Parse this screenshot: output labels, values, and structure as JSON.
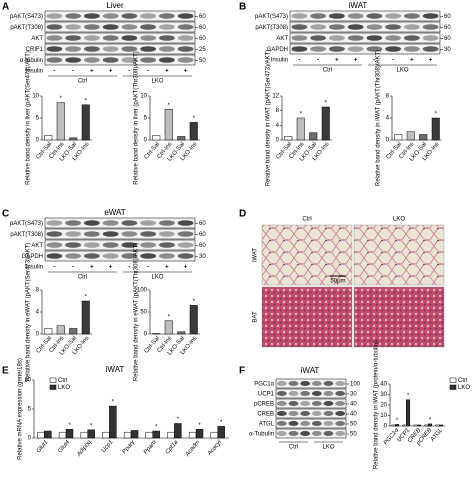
{
  "panels": [
    {
      "letter": "A",
      "title": "Liver",
      "blot": {
        "rows": [
          {
            "label": "pAKT(S473)",
            "mw": 60
          },
          {
            "label": "pAKT(T308)",
            "mw": 60
          },
          {
            "label": "AKT",
            "mw": 60
          },
          {
            "label": "CRIF1",
            "mw": 25
          },
          {
            "label": "α-tubulin",
            "mw": 50
          }
        ],
        "insulin_label": "Insulin",
        "insulin": [
          "-",
          "-",
          "+",
          "+",
          "-",
          "-",
          "+",
          "+"
        ],
        "groups": [
          "Ctrl",
          "LKO"
        ]
      },
      "charts": [
        {
          "ylabel": "Relative band density in liver (pAKT(Ser473)/AKT)",
          "categories": [
            "Ctrl-Sal",
            "Ctrl-Ins",
            "LKO-Sal",
            "LKO-Ins"
          ],
          "values": [
            1,
            8.5,
            0.5,
            8
          ],
          "colors": [
            "#ffffff",
            "#bdbdbd",
            "#6e6e6e",
            "#3a3a3a"
          ],
          "marks": [
            null,
            "*",
            null,
            "*"
          ],
          "ylim": [
            0,
            10
          ],
          "yticks": [
            0,
            5,
            10
          ]
        },
        {
          "ylabel": "Relative band density in liver (pAKT(Thr308)/AKT)",
          "categories": [
            "Ctrl-Sal",
            "Ctrl-Ins",
            "LKO-Sal",
            "LKO-Ins"
          ],
          "values": [
            1,
            7,
            0.8,
            4
          ],
          "colors": [
            "#ffffff",
            "#bdbdbd",
            "#6e6e6e",
            "#3a3a3a"
          ],
          "marks": [
            null,
            "*",
            null,
            "*"
          ],
          "ylim": [
            0,
            10
          ],
          "yticks": [
            0,
            5,
            10
          ]
        }
      ]
    },
    {
      "letter": "B",
      "title": "iWAT",
      "blot": {
        "rows": [
          {
            "label": "pAKT(S473)",
            "mw": 60
          },
          {
            "label": "pAKT(T308)",
            "mw": 60
          },
          {
            "label": "AKT",
            "mw": 60
          },
          {
            "label": "GAPDH",
            "mw": 30
          }
        ],
        "insulin_label": "Insulin",
        "insulin": [
          "-",
          "-",
          "+",
          "+",
          "-",
          "-",
          "+",
          "+"
        ],
        "groups": [
          "Ctrl",
          "LKO"
        ]
      },
      "charts": [
        {
          "ylabel": "Relative band density in iWAT (pAKT(Ser473)/AKT)",
          "categories": [
            "Ctrl-Sal",
            "Ctrl-Ins",
            "LKO-Sal",
            "LKO-Ins"
          ],
          "values": [
            1,
            6,
            2,
            9
          ],
          "colors": [
            "#ffffff",
            "#bdbdbd",
            "#6e6e6e",
            "#3a3a3a"
          ],
          "marks": [
            null,
            "*",
            null,
            "*"
          ],
          "ylim": [
            0,
            12
          ],
          "yticks": [
            0,
            4,
            8,
            12
          ]
        },
        {
          "ylabel": "Relative band density in iWAT (pAKT(Thr308)/AKT)",
          "categories": [
            "Ctrl-Sal",
            "Ctrl-Ins",
            "LKO-Sal",
            "LKO-Ins"
          ],
          "values": [
            1,
            1.5,
            1,
            4
          ],
          "colors": [
            "#ffffff",
            "#bdbdbd",
            "#6e6e6e",
            "#3a3a3a"
          ],
          "marks": [
            null,
            null,
            null,
            "*"
          ],
          "ylim": [
            0,
            8
          ],
          "yticks": [
            0,
            4,
            8
          ]
        }
      ]
    },
    {
      "letter": "C",
      "title": "eWAT",
      "blot": {
        "rows": [
          {
            "label": "pAKT(S473)",
            "mw": 60
          },
          {
            "label": "pAKT(T308)",
            "mw": 60
          },
          {
            "label": "AKT",
            "mw": 60
          },
          {
            "label": "GAPDH",
            "mw": 30
          }
        ],
        "insulin_label": "Insulin",
        "insulin": [
          "-",
          "-",
          "+",
          "+",
          "-",
          "-",
          "+",
          "+"
        ],
        "groups": [
          "Ctrl",
          "LKO"
        ]
      },
      "charts": [
        {
          "ylabel": "Relative band density in eWAT (pAKT(Ser473)/AKT)",
          "categories": [
            "Ctrl-Sal",
            "Ctrl-Ins",
            "LKO-Sal",
            "LKO-Ins"
          ],
          "values": [
            1,
            1.5,
            1,
            6
          ],
          "colors": [
            "#ffffff",
            "#bdbdbd",
            "#6e6e6e",
            "#3a3a3a"
          ],
          "marks": [
            null,
            null,
            null,
            "*"
          ],
          "ylim": [
            0,
            8
          ],
          "yticks": [
            0,
            4,
            8
          ]
        },
        {
          "ylabel": "Relative band density in eWAT (pAKT(Thr308)/AKT)",
          "categories": [
            "Ctrl-Sal",
            "Ctrl-Ins",
            "LKO-Sal",
            "LKO-Ins"
          ],
          "values": [
            1,
            30,
            5,
            65
          ],
          "colors": [
            "#ffffff",
            "#bdbdbd",
            "#6e6e6e",
            "#3a3a3a"
          ],
          "marks": [
            null,
            "*",
            null,
            "*"
          ],
          "ylim": [
            0,
            100
          ],
          "yticks": [
            0,
            50,
            100
          ]
        }
      ]
    },
    {
      "letter": "D",
      "columns": [
        "Ctrl",
        "LKO"
      ],
      "rows": [
        "iWAT",
        "BAT"
      ],
      "scale": "50μm"
    },
    {
      "letter": "E",
      "title": "iWAT",
      "charts": [
        {
          "ylabel": "Relative mRNA expression (gene/18s)",
          "categories": [
            "Glut1",
            "Glut4",
            "Adipoq",
            "Ucp1",
            "Pparγ",
            "Pparα",
            "Cpt1a",
            "Acadm",
            "Acacyl"
          ],
          "series": [
            {
              "name": "Ctrl",
              "color": "#ffffff",
              "values": [
                1,
                1,
                1,
                1,
                1,
                1,
                1,
                1,
                1
              ],
              "marks": [
                null,
                null,
                null,
                null,
                null,
                null,
                null,
                null,
                null
              ]
            },
            {
              "name": "LKO",
              "color": "#333333",
              "values": [
                1.2,
                1.5,
                1.4,
                5.5,
                1.3,
                1.2,
                2.5,
                1.5,
                2
              ],
              "marks": [
                null,
                "*",
                "*",
                "*",
                null,
                "*",
                "*",
                "*",
                "*"
              ]
            }
          ],
          "ylim": [
            0,
            10
          ],
          "yticks": [
            0,
            5,
            10
          ]
        }
      ]
    },
    {
      "letter": "F",
      "title": "iWAT",
      "blot": {
        "rows": [
          {
            "label": "PGC1α",
            "mw": 100
          },
          {
            "label": "UCP1",
            "mw": 30
          },
          {
            "label": "pCREB",
            "mw": 40
          },
          {
            "label": "CREB",
            "mw": 40
          },
          {
            "label": "ATGL",
            "mw": 50
          },
          {
            "label": "α-Tubulin",
            "mw": 50
          }
        ],
        "groups": [
          "Ctrl",
          "LKO"
        ]
      },
      "charts": [
        {
          "ylabel": "Relative band density in iWAT (protein/α-tubulin)",
          "categories": [
            "PGC1α",
            "UCP1",
            "CREB",
            "pCREB",
            "ATGL"
          ],
          "series": [
            {
              "name": "Ctrl",
              "color": "#ffffff",
              "values": [
                1,
                1,
                1,
                1,
                1
              ],
              "marks": [
                null,
                null,
                null,
                null,
                null
              ]
            },
            {
              "name": "LKO",
              "color": "#333333",
              "values": [
                1.5,
                25,
                1,
                2,
                1
              ],
              "marks": [
                "*",
                "*",
                null,
                "*",
                null
              ]
            }
          ],
          "ylim": [
            0,
            40
          ],
          "yticks": [
            0,
            10,
            20,
            30,
            40
          ]
        }
      ]
    }
  ]
}
